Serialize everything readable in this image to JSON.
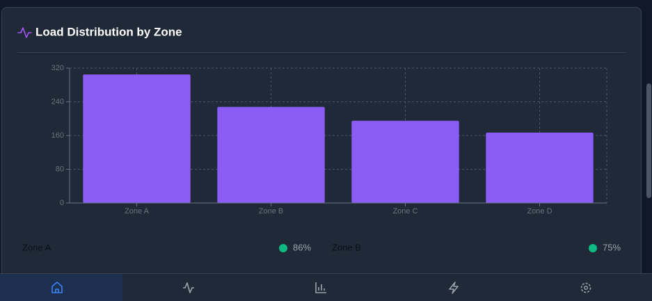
{
  "card": {
    "title": "Load Distribution by Zone"
  },
  "chart_data": {
    "type": "bar",
    "categories": [
      "Zone A",
      "Zone B",
      "Zone C",
      "Zone D"
    ],
    "values": [
      305,
      228,
      195,
      167
    ],
    "color": "#8b5cf6",
    "ylim": [
      0,
      320
    ],
    "yticks": [
      0,
      80,
      160,
      240,
      320
    ],
    "grid": true
  },
  "status": [
    {
      "name": "Zone A",
      "value": "86%"
    },
    {
      "name": "Zone B",
      "value": "75%"
    }
  ]
}
